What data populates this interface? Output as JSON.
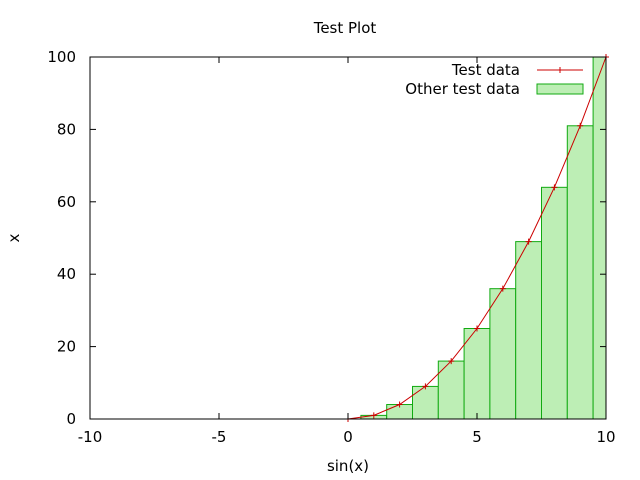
{
  "chart_data": {
    "type": "bar",
    "title": "Test Plot",
    "xlabel": "sin(x)",
    "ylabel": "x",
    "xlim": [
      -10,
      10
    ],
    "ylim": [
      0,
      100
    ],
    "xticks": [
      "-10",
      "-5",
      "0",
      "5",
      "10"
    ],
    "yticks": [
      "0",
      "20",
      "40",
      "60",
      "80",
      "100"
    ],
    "grid": false,
    "legend_position": "top-right",
    "series": [
      {
        "name": "Test data",
        "style": "line-with-points",
        "color": "#cc0000",
        "x": [
          0,
          1,
          2,
          3,
          4,
          5,
          6,
          7,
          8,
          9,
          10
        ],
        "y": [
          0,
          1,
          4,
          9,
          16,
          25,
          36,
          49,
          64,
          81,
          100
        ]
      },
      {
        "name": "Other test data",
        "style": "boxes",
        "fill": "#bdeeb5",
        "stroke": "#11aa11",
        "x": [
          0,
          1,
          2,
          3,
          4,
          5,
          6,
          7,
          8,
          9,
          10
        ],
        "y": [
          0,
          1,
          4,
          9,
          16,
          25,
          36,
          49,
          64,
          81,
          100
        ]
      }
    ]
  }
}
